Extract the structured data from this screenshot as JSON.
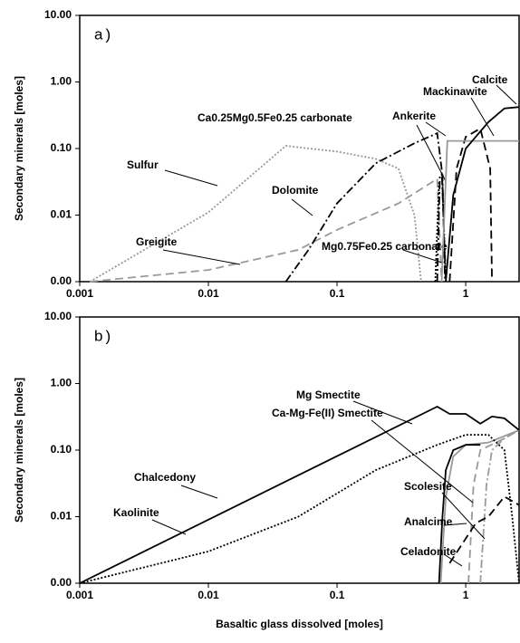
{
  "chart_data": [
    {
      "type": "line",
      "panel_label": "a)",
      "ylabel": "Secondary minerals [moles]",
      "xlog": true,
      "ylog": true,
      "xlim": [
        0.001,
        2.6
      ],
      "ylim": [
        0.001,
        10
      ],
      "xticks": [
        0.001,
        0.01,
        0.1,
        1
      ],
      "yticks": [
        {
          "value": 0.001,
          "label": "0.00"
        },
        {
          "value": 0.01,
          "label": "0.01"
        },
        {
          "value": 0.1,
          "label": "0.10"
        },
        {
          "value": 1,
          "label": "1.00"
        },
        {
          "value": 10,
          "label": "10.00"
        }
      ],
      "series": [
        {
          "name": "Sulfur",
          "color": "#999999",
          "dash": "dotted",
          "x": [
            0.0012,
            0.01,
            0.04,
            0.1,
            0.2,
            0.3,
            0.4,
            0.45
          ],
          "values": [
            0.001,
            0.011,
            0.11,
            0.09,
            0.07,
            0.05,
            0.01,
            0.001
          ]
        },
        {
          "name": "Greigite",
          "color": "#999999",
          "dash": "dashed",
          "x": [
            0.0012,
            0.01,
            0.05,
            0.1,
            0.3,
            0.6,
            0.65
          ],
          "values": [
            0.001,
            0.0015,
            0.003,
            0.006,
            0.015,
            0.035,
            0.001
          ]
        },
        {
          "name": "Dolomite",
          "color": "#000000",
          "dash": "dashdot",
          "x": [
            0.04,
            0.06,
            0.1,
            0.2,
            0.4,
            0.6,
            0.65,
            0.7
          ],
          "values": [
            0.001,
            0.003,
            0.015,
            0.06,
            0.12,
            0.17,
            0.05,
            0.001
          ]
        },
        {
          "name": "Ca0.25Mg0.5Fe0.25 carbonate",
          "color": "#000000",
          "dash": "dotted",
          "x": [
            0.58,
            0.62,
            0.66,
            0.7
          ],
          "values": [
            0.001,
            0.03,
            0.03,
            0.001
          ]
        },
        {
          "name": "Mg0.75Fe0.25 carbonate",
          "color": "#000000",
          "dash": "dashdot",
          "x": [
            0.6,
            0.63,
            0.66,
            0.69
          ],
          "values": [
            0.001,
            0.04,
            0.04,
            0.001
          ]
        },
        {
          "name": "Ankerite",
          "color": "#000000",
          "dash": "dashed",
          "x": [
            0.75,
            0.85,
            1.0,
            1.3,
            1.55,
            1.6
          ],
          "values": [
            0.001,
            0.05,
            0.15,
            0.2,
            0.05,
            0.001
          ]
        },
        {
          "name": "Mackinawite",
          "color": "#999999",
          "dash": "solid",
          "x": [
            0.65,
            0.72,
            1,
            2.6
          ],
          "values": [
            0.001,
            0.13,
            0.13,
            0.13
          ]
        },
        {
          "name": "Calcite",
          "color": "#000000",
          "dash": "solid",
          "x": [
            0.7,
            0.8,
            1,
            1.5,
            2,
            2.6
          ],
          "values": [
            0.001,
            0.02,
            0.1,
            0.25,
            0.4,
            0.42
          ]
        }
      ]
    },
    {
      "type": "line",
      "panel_label": "b)",
      "ylabel": "Secondary minerals [moles]",
      "xlabel": "Basaltic glass dissolved [moles]",
      "xlog": true,
      "ylog": true,
      "xlim": [
        0.001,
        2.6
      ],
      "ylim": [
        0.001,
        10
      ],
      "xticks": [
        0.001,
        0.01,
        0.1,
        1
      ],
      "yticks": [
        {
          "value": 0.001,
          "label": "0.00"
        },
        {
          "value": 0.01,
          "label": "0.01"
        },
        {
          "value": 0.1,
          "label": "0.10"
        },
        {
          "value": 1,
          "label": "1.00"
        },
        {
          "value": 10,
          "label": "10.00"
        }
      ],
      "series": [
        {
          "name": "Mg Smectite",
          "color": "#999999",
          "dash": "solid",
          "x": [
            0.64,
            0.7,
            0.8,
            1,
            1.5,
            2.6
          ],
          "values": [
            0.001,
            0.02,
            0.08,
            0.12,
            0.13,
            0.2
          ]
        },
        {
          "name": "Ca-Mg-Fe(II) Smectite",
          "color": "#999999",
          "dash": "dashed",
          "x": [
            1.05,
            1.15,
            1.3,
            2,
            2.6
          ],
          "values": [
            0.001,
            0.03,
            0.1,
            0.15,
            0.2
          ]
        },
        {
          "name": "Chalcedony",
          "color": "#000000",
          "dash": "solid",
          "x": [
            0.001,
            0.6,
            0.75,
            1,
            1.3,
            1.6,
            2,
            2.6
          ],
          "values": [
            0.001,
            0.45,
            0.35,
            0.35,
            0.25,
            0.32,
            0.3,
            0.2
          ]
        },
        {
          "name": "Kaolinite",
          "color": "#000000",
          "dash": "dotted",
          "x": [
            0.001,
            0.01,
            0.05,
            0.2,
            0.6,
            1,
            1.5,
            2,
            2.3,
            2.6
          ],
          "values": [
            0.001,
            0.003,
            0.01,
            0.05,
            0.12,
            0.17,
            0.17,
            0.1,
            0.01,
            0.001
          ]
        },
        {
          "name": "Scolesite",
          "color": "#999999",
          "dash": "dashdot",
          "x": [
            1.3,
            1.45,
            1.6,
            2,
            2.6
          ],
          "values": [
            0.001,
            0.03,
            0.1,
            0.15,
            0.2
          ]
        },
        {
          "name": "Analcime",
          "color": "#000000",
          "dash": "dashed",
          "x": [
            0.75,
            1.2,
            1.5,
            2,
            2.6
          ],
          "values": [
            0.002,
            0.008,
            0.01,
            0.02,
            0.015
          ]
        },
        {
          "name": "Celadonite",
          "color": "#000000",
          "dash": "solid",
          "x": [
            0.62,
            0.66,
            0.7,
            0.8,
            1.0,
            1.3
          ],
          "values": [
            0.001,
            0.01,
            0.05,
            0.1,
            0.12,
            0.12
          ]
        }
      ]
    }
  ]
}
